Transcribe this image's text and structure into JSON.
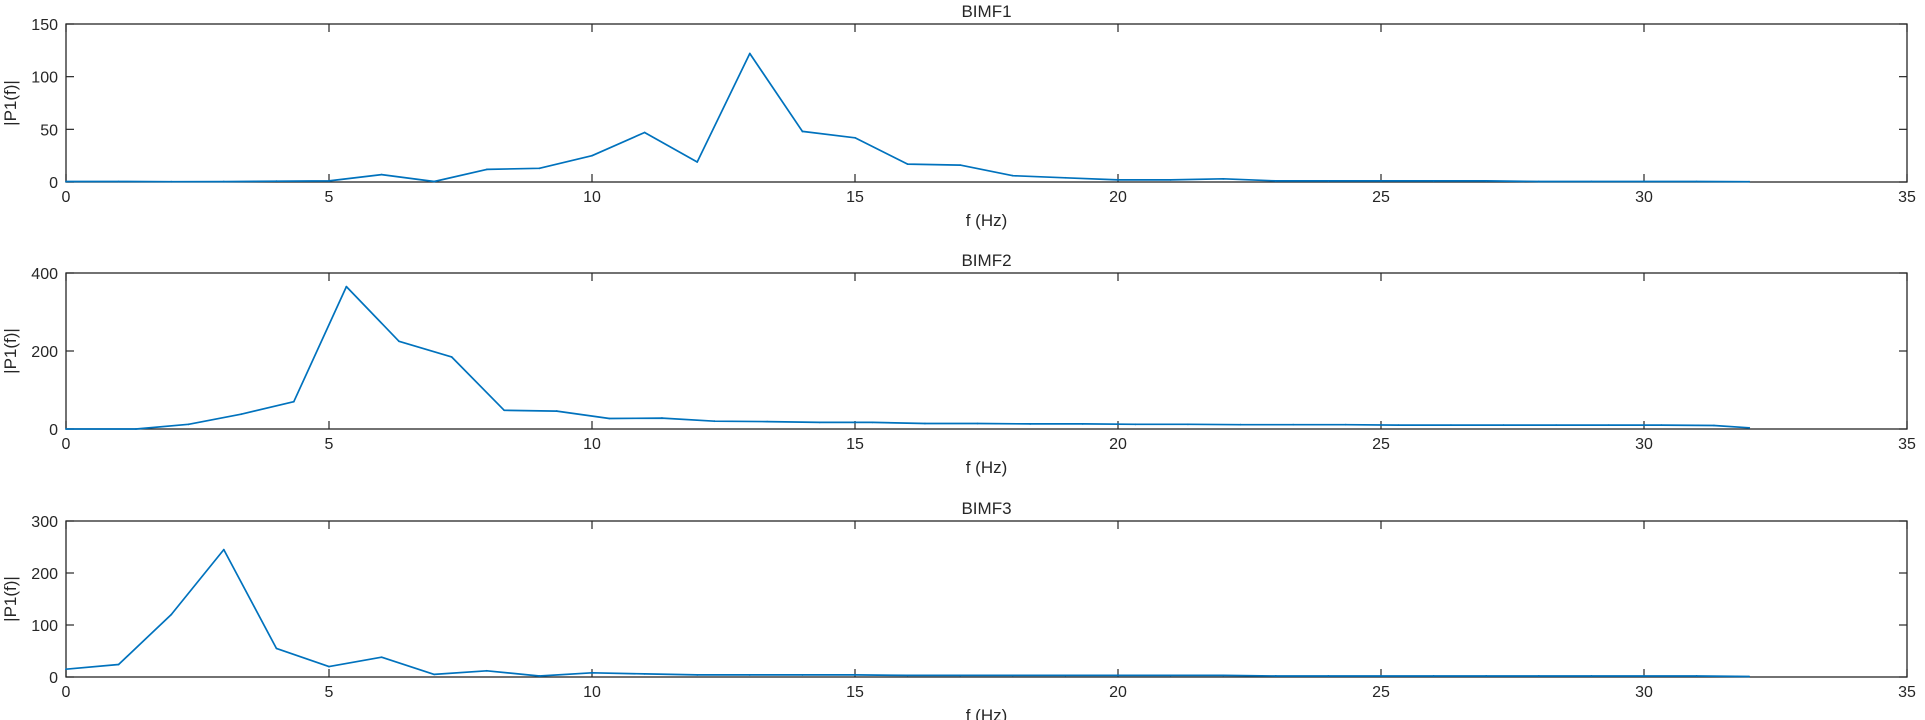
{
  "colors": {
    "series": "#0072BD",
    "axes": "#262626",
    "background": "#ffffff"
  },
  "chart_data": [
    {
      "type": "line",
      "title": "BIMF1",
      "xlabel": "f (Hz)",
      "ylabel": "|P1(f)|",
      "xlim": [
        0,
        35
      ],
      "ylim": [
        0,
        150
      ],
      "xticks": [
        0,
        5,
        10,
        15,
        20,
        25,
        30,
        35
      ],
      "yticks": [
        0,
        50,
        100,
        150
      ],
      "grid": false,
      "series": [
        {
          "x": [
            0,
            1,
            2,
            3,
            4,
            5,
            6,
            7,
            8,
            9,
            10,
            11,
            12,
            13,
            14,
            15,
            16,
            17,
            18,
            19,
            20,
            21,
            22,
            23,
            24,
            25,
            26,
            27,
            28,
            29,
            30,
            31,
            32
          ],
          "y": [
            0.5,
            0.5,
            0.3,
            0.4,
            0.8,
            1,
            7,
            0.5,
            12,
            13,
            25,
            47,
            19,
            122,
            48,
            42,
            17,
            16,
            6,
            4,
            2,
            2,
            3,
            1,
            1,
            1,
            1,
            1,
            0.5,
            0.5,
            0.5,
            0.5,
            0.3
          ]
        }
      ]
    },
    {
      "type": "line",
      "title": "BIMF2",
      "xlabel": "f (Hz)",
      "ylabel": "|P1(f)|",
      "xlim": [
        0,
        35
      ],
      "ylim": [
        0,
        400
      ],
      "xticks": [
        0,
        5,
        10,
        15,
        20,
        25,
        30,
        35
      ],
      "yticks": [
        0,
        200,
        400
      ],
      "grid": false,
      "series": [
        {
          "x": [
            0,
            1.33,
            2.33,
            3.33,
            4.33,
            5.33,
            6.33,
            7.33,
            8.33,
            9.33,
            10.33,
            11.33,
            12.33,
            13.33,
            14.33,
            15.33,
            16.33,
            17.33,
            18.33,
            19.33,
            20.33,
            21.33,
            22.33,
            23.33,
            24.33,
            25.33,
            26.33,
            27.33,
            28.33,
            29.33,
            30.33,
            31.33,
            32.0
          ],
          "y": [
            0,
            0,
            12,
            38,
            70,
            365,
            225,
            185,
            48,
            46,
            27,
            28,
            20,
            19,
            17,
            17,
            14,
            14,
            13,
            13,
            12,
            12,
            11,
            11,
            11,
            10,
            10,
            10,
            10,
            10,
            10,
            9,
            3
          ]
        }
      ]
    },
    {
      "type": "line",
      "title": "BIMF3",
      "xlabel": "f (Hz)",
      "ylabel": "|P1(f)|",
      "xlim": [
        0,
        35
      ],
      "ylim": [
        0,
        300
      ],
      "xticks": [
        0,
        5,
        10,
        15,
        20,
        25,
        30,
        35
      ],
      "yticks": [
        0,
        100,
        200,
        300
      ],
      "grid": false,
      "series": [
        {
          "x": [
            0,
            1,
            2,
            3,
            4,
            5,
            6,
            7,
            8,
            9,
            10,
            11,
            12,
            13,
            14,
            15,
            16,
            17,
            18,
            19,
            20,
            21,
            22,
            23,
            24,
            25,
            26,
            27,
            28,
            29,
            30,
            31,
            32
          ],
          "y": [
            15,
            24,
            120,
            245,
            55,
            20,
            38,
            5,
            12,
            2,
            8,
            6,
            4,
            4,
            4,
            4,
            3,
            3,
            3,
            3,
            3,
            3,
            3,
            2,
            2,
            2,
            2,
            2,
            2,
            2,
            2,
            2,
            1
          ]
        }
      ]
    }
  ]
}
